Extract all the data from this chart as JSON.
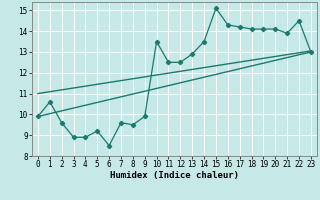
{
  "xlabel": "Humidex (Indice chaleur)",
  "xlim": [
    -0.5,
    23.5
  ],
  "ylim": [
    8,
    15.4
  ],
  "xticks": [
    0,
    1,
    2,
    3,
    4,
    5,
    6,
    7,
    8,
    9,
    10,
    11,
    12,
    13,
    14,
    15,
    16,
    17,
    18,
    19,
    20,
    21,
    22,
    23
  ],
  "yticks": [
    8,
    9,
    10,
    11,
    12,
    13,
    14,
    15
  ],
  "bg_color": "#c6e8e6",
  "grid_color": "#ffffff",
  "line_color": "#1a7a6e",
  "zigzag_x": [
    0,
    1,
    2,
    3,
    4,
    5,
    6,
    7,
    8,
    9,
    10,
    11,
    12,
    13,
    14,
    15,
    16,
    17,
    18,
    19,
    20,
    21,
    22,
    23
  ],
  "zigzag_y": [
    9.9,
    10.6,
    9.6,
    8.9,
    8.9,
    9.2,
    8.5,
    9.6,
    9.5,
    9.9,
    13.5,
    12.5,
    12.5,
    12.9,
    13.5,
    15.1,
    14.3,
    14.2,
    14.1,
    14.1,
    14.1,
    13.9,
    14.5,
    13.0
  ],
  "line1_x": [
    0,
    23
  ],
  "line1_y": [
    9.9,
    13.0
  ],
  "line2_x": [
    0,
    23
  ],
  "line2_y": [
    11.0,
    13.05
  ]
}
